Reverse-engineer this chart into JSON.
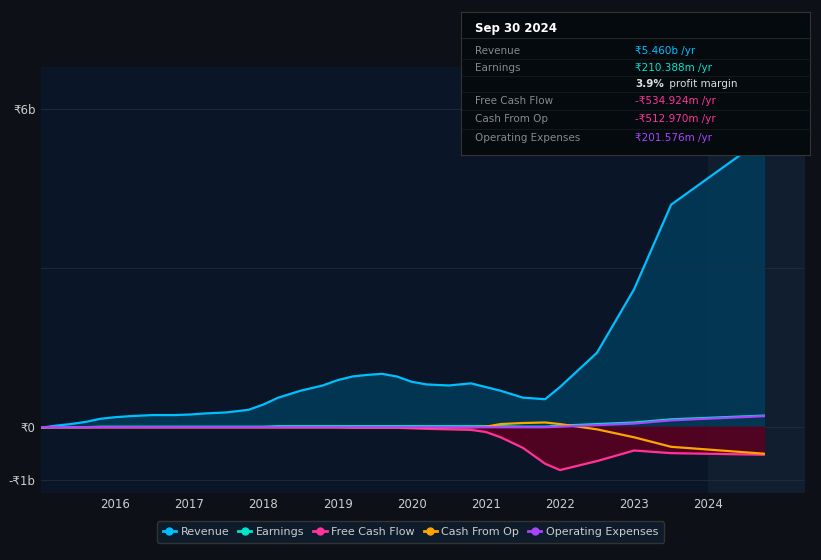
{
  "background_color": "#0d1117",
  "plot_bg_color": "#0a1628",
  "grid_color": "#1e2d3d",
  "highlight_bg": "#111e30",
  "revenue": [
    -0.02,
    0.02,
    0.05,
    0.09,
    0.15,
    0.18,
    0.2,
    0.22,
    0.22,
    0.23,
    0.25,
    0.27,
    0.32,
    0.42,
    0.55,
    0.68,
    0.78,
    0.88,
    0.95,
    0.98,
    1.0,
    0.95,
    0.85,
    0.8,
    0.78,
    0.82,
    0.75,
    0.68,
    0.55,
    0.52,
    0.75,
    1.4,
    2.6,
    4.2,
    5.46
  ],
  "earnings": [
    -0.02,
    -0.01,
    -0.01,
    -0.01,
    0.0,
    0.0,
    0.0,
    0.0,
    0.0,
    0.0,
    0.0,
    0.0,
    0.0,
    0.0,
    0.01,
    0.01,
    0.01,
    0.01,
    0.01,
    0.01,
    0.01,
    0.01,
    0.01,
    0.01,
    0.01,
    0.01,
    0.01,
    0.01,
    0.0,
    0.0,
    0.02,
    0.05,
    0.08,
    0.14,
    0.21
  ],
  "free_cash_flow": [
    -0.01,
    -0.01,
    -0.01,
    -0.01,
    -0.01,
    -0.01,
    -0.01,
    -0.01,
    -0.01,
    -0.01,
    -0.01,
    -0.01,
    -0.01,
    -0.01,
    -0.01,
    -0.01,
    -0.01,
    -0.01,
    -0.02,
    -0.02,
    -0.02,
    -0.02,
    -0.03,
    -0.04,
    -0.05,
    -0.06,
    -0.1,
    -0.2,
    -0.4,
    -0.7,
    -0.82,
    -0.65,
    -0.45,
    -0.5,
    -0.53
  ],
  "cash_from_op": [
    -0.01,
    -0.01,
    -0.01,
    -0.01,
    -0.01,
    -0.01,
    -0.01,
    -0.01,
    -0.01,
    -0.01,
    -0.01,
    -0.01,
    -0.01,
    -0.01,
    -0.01,
    -0.01,
    -0.01,
    -0.01,
    -0.01,
    -0.01,
    -0.01,
    -0.01,
    -0.01,
    -0.01,
    -0.01,
    -0.01,
    0.0,
    0.05,
    0.07,
    0.08,
    0.05,
    -0.05,
    -0.2,
    -0.38,
    -0.51
  ],
  "operating_expenses": [
    -0.01,
    -0.01,
    -0.01,
    -0.01,
    -0.01,
    -0.01,
    -0.01,
    -0.01,
    -0.01,
    -0.01,
    -0.01,
    -0.01,
    -0.01,
    -0.01,
    -0.01,
    -0.01,
    -0.01,
    -0.01,
    -0.01,
    -0.01,
    -0.01,
    -0.01,
    -0.01,
    -0.01,
    -0.01,
    -0.01,
    -0.01,
    -0.01,
    -0.01,
    -0.01,
    0.0,
    0.03,
    0.06,
    0.12,
    0.2
  ],
  "x_years": [
    2015.0,
    2015.2,
    2015.4,
    2015.6,
    2015.8,
    2016.0,
    2016.2,
    2016.5,
    2016.8,
    2017.0,
    2017.2,
    2017.5,
    2017.8,
    2018.0,
    2018.2,
    2018.5,
    2018.8,
    2019.0,
    2019.2,
    2019.4,
    2019.6,
    2019.8,
    2020.0,
    2020.2,
    2020.5,
    2020.8,
    2021.0,
    2021.2,
    2021.5,
    2021.8,
    2022.0,
    2022.5,
    2023.0,
    2023.5,
    2024.75
  ],
  "revenue_color": "#00bfff",
  "earnings_color": "#00e5cc",
  "free_cash_flow_color": "#ff3399",
  "cash_from_op_color": "#ffa500",
  "operating_expenses_color": "#aa44ff",
  "revenue_fill_color": "#003d5c",
  "free_cash_flow_fill_color": "#5c0020",
  "highlight_start": 2024.0,
  "highlight_end": 2025.3,
  "ylim": [
    -1.25,
    6.8
  ],
  "xlim": [
    2015.0,
    2025.3
  ],
  "ytick_vals": [
    -1,
    0,
    3,
    6
  ],
  "ytick_labels_map": {
    "-1": "-₹1b",
    "0": "₹0",
    "3": "",
    "6": "₹6b"
  },
  "xticks": [
    2016,
    2017,
    2018,
    2019,
    2020,
    2021,
    2022,
    2023,
    2024
  ],
  "legend_items": [
    "Revenue",
    "Earnings",
    "Free Cash Flow",
    "Cash From Op",
    "Operating Expenses"
  ],
  "legend_colors": [
    "#00bfff",
    "#00e5cc",
    "#ff3399",
    "#ffa500",
    "#aa44ff"
  ],
  "info_box": {
    "title": "Sep 30 2024",
    "rows": [
      {
        "label": "Revenue",
        "value": "₹5.460b /yr",
        "value_color": "#00bfff",
        "label_color": "#888888"
      },
      {
        "label": "Earnings",
        "value": "₹210.388m /yr",
        "value_color": "#00e5cc",
        "label_color": "#888888"
      },
      {
        "label": "",
        "value": "3.9% profit margin",
        "value_color": "#dddddd",
        "label_color": "#888888",
        "bold_part": "3.9%"
      },
      {
        "label": "Free Cash Flow",
        "value": "-₹534.924m /yr",
        "value_color": "#ff3399",
        "label_color": "#888888"
      },
      {
        "label": "Cash From Op",
        "value": "-₹512.970m /yr",
        "value_color": "#ff3399",
        "label_color": "#888888"
      },
      {
        "label": "Operating Expenses",
        "value": "₹201.576m /yr",
        "value_color": "#aa44ff",
        "label_color": "#888888"
      }
    ],
    "bg_color": "#050a0f",
    "border_color": "#333333",
    "title_color": "#ffffff",
    "text_color": "#888888"
  }
}
